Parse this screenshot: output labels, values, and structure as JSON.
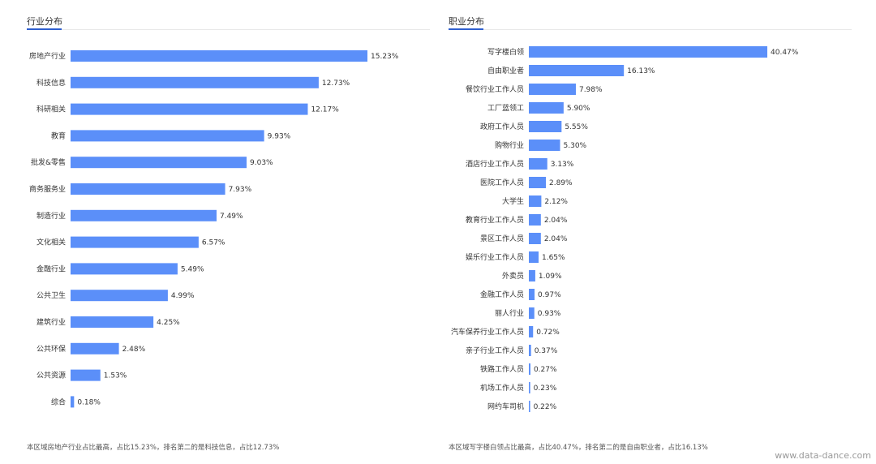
{
  "chart_data": [
    {
      "type": "bar",
      "orientation": "horizontal",
      "title": "行业分布",
      "categories": [
        "房地产行业",
        "科技信息",
        "科研相关",
        "教育",
        "批发&零售",
        "商务服务业",
        "制造行业",
        "文化相关",
        "金融行业",
        "公共卫生",
        "建筑行业",
        "公共环保",
        "公共资源",
        "综合"
      ],
      "values": [
        15.23,
        12.73,
        12.17,
        9.93,
        9.03,
        7.93,
        7.49,
        6.57,
        5.49,
        4.99,
        4.25,
        2.48,
        1.53,
        0.18
      ],
      "value_labels": [
        "15.23%",
        "12.73%",
        "12.17%",
        "9.93%",
        "9.03%",
        "7.93%",
        "7.49%",
        "6.57%",
        "5.49%",
        "4.99%",
        "4.25%",
        "2.48%",
        "1.53%",
        "0.18%"
      ],
      "unit": "%",
      "bar_color": "#5b8ff9",
      "grid": false,
      "legend": "none"
    },
    {
      "type": "bar",
      "orientation": "horizontal",
      "title": "职业分布",
      "categories": [
        "写字楼白领",
        "自由职业者",
        "餐饮行业工作人员",
        "工厂蓝领工",
        "政府工作人员",
        "购物行业",
        "酒店行业工作人员",
        "医院工作人员",
        "大学生",
        "教育行业工作人员",
        "景区工作人员",
        "娱乐行业工作人员",
        "外卖员",
        "金融工作人员",
        "丽人行业",
        "汽车保养行业工作人员",
        "亲子行业工作人员",
        "铁路工作人员",
        "机场工作人员",
        "网约车司机"
      ],
      "values": [
        40.47,
        16.13,
        7.98,
        5.9,
        5.55,
        5.3,
        3.13,
        2.89,
        2.12,
        2.04,
        2.04,
        1.65,
        1.09,
        0.97,
        0.93,
        0.72,
        0.37,
        0.27,
        0.23,
        0.22
      ],
      "value_labels": [
        "40.47%",
        "16.13%",
        "7.98%",
        "5.90%",
        "5.55%",
        "5.30%",
        "3.13%",
        "2.89%",
        "2.12%",
        "2.04%",
        "2.04%",
        "1.65%",
        "1.09%",
        "0.97%",
        "0.93%",
        "0.72%",
        "0.37%",
        "0.27%",
        "0.23%",
        "0.22%"
      ],
      "unit": "%",
      "bar_color": "#5b8ff9",
      "grid": false,
      "legend": "none"
    }
  ],
  "summaries": {
    "left": "本区域房地产行业占比最高，占比15.23%，排名第二的是科技信息，占比12.73%",
    "right": "本区域写字楼白领占比最高，占比40.47%，排名第二的是自由职业者，占比16.13%"
  },
  "watermark": "www.data-dance.com"
}
